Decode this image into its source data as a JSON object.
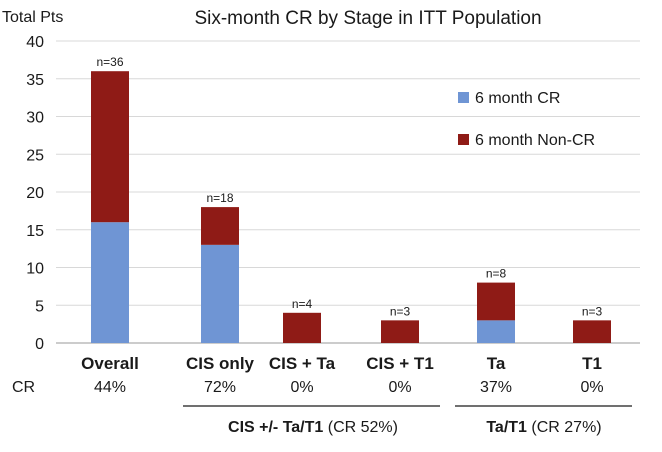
{
  "chart_data": {
    "type": "bar",
    "stacked": true,
    "title": "Six-month CR by Stage in ITT Population",
    "ylabel": "Total Pts",
    "ylim": [
      0,
      40
    ],
    "yticks": [
      0,
      5,
      10,
      15,
      20,
      25,
      30,
      35,
      40
    ],
    "grid": true,
    "legend_position": "top-right",
    "categories": [
      "Overall",
      "CIS only",
      "CIS + Ta",
      "CIS + T1",
      "Ta",
      "T1"
    ],
    "totals_labels": [
      "n=36",
      "n=18",
      "n=4",
      "n=3",
      "n=8",
      "n=3"
    ],
    "series": [
      {
        "name": "6 month CR",
        "color": "#6f95d4",
        "values": [
          16,
          13,
          0,
          0,
          3,
          0
        ]
      },
      {
        "name": "6 month Non-CR",
        "color": "#8f1b16",
        "values": [
          20,
          5,
          4,
          3,
          5,
          3
        ]
      }
    ],
    "cr_row_label": "CR",
    "cr_values": [
      "44%",
      "72%",
      "0%",
      "0%",
      "37%",
      "0%"
    ],
    "groups": [
      {
        "label_bold": "CIS +/- Ta/T1",
        "label_rest": " (CR 52%)",
        "categories": [
          "CIS only",
          "CIS + Ta",
          "CIS + T1"
        ]
      },
      {
        "label_bold": "Ta/T1",
        "label_rest": " (CR 27%)",
        "categories": [
          "Ta",
          "T1"
        ]
      }
    ]
  }
}
